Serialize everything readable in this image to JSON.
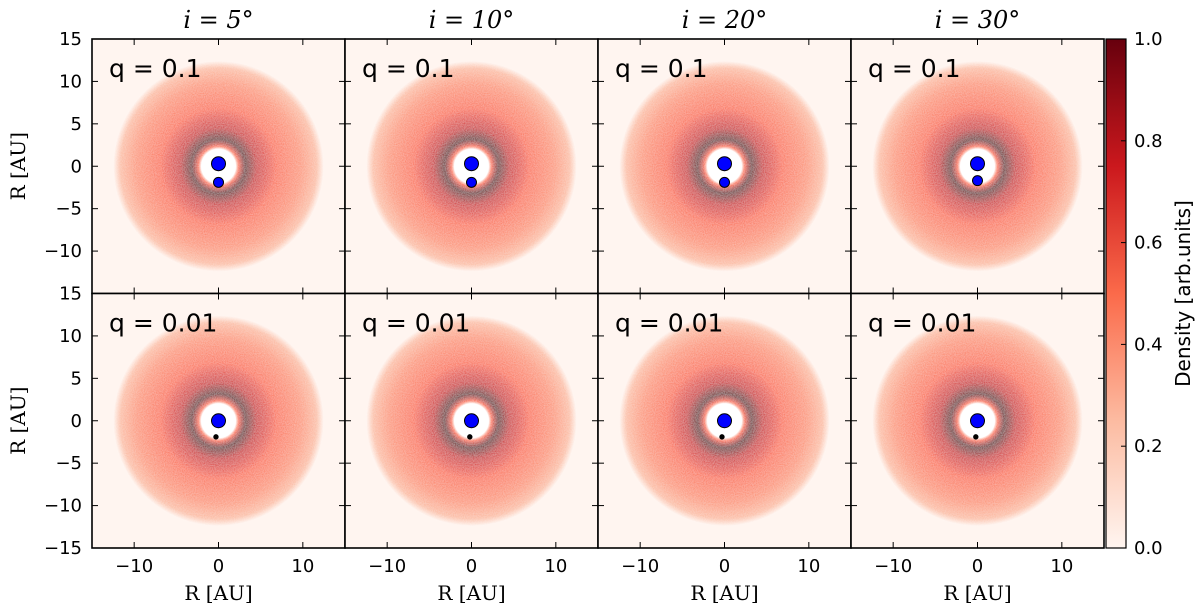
{
  "chart_data": {
    "type": "heatmap",
    "column_titles": [
      "i = 5°",
      "i = 10°",
      "i = 20°",
      "i = 30°"
    ],
    "row_labels": [
      "q = 0.1",
      "q = 0.01"
    ],
    "xlabel": "R [AU]",
    "ylabel": "R [AU]",
    "xlim": [
      -15,
      15
    ],
    "ylim": [
      -15,
      15
    ],
    "x_ticks": [
      -10,
      0,
      10
    ],
    "y_ticks": [
      -15,
      -10,
      -5,
      0,
      5,
      10,
      15
    ],
    "colorbar": {
      "label": "Density [arb.units]",
      "range": [
        0.0,
        1.0
      ],
      "ticks": [
        0.0,
        0.2,
        0.4,
        0.6,
        0.8,
        1.0
      ],
      "colormap": "Reds",
      "colors": [
        "#fff5f0",
        "#fcbba1",
        "#fb6a4a",
        "#cb181d",
        "#67000d"
      ]
    },
    "disk": {
      "outer_radius": 12.5,
      "gap_radius": 2.4,
      "peak_ring_radius": 3.2
    },
    "panels": [
      {
        "column": "i = 5°",
        "q": "q = 0.1",
        "primary": [
          0,
          0.3
        ],
        "companion": [
          0,
          -1.9
        ],
        "companion_size": "medium"
      },
      {
        "column": "i = 10°",
        "q": "q = 0.1",
        "primary": [
          0,
          0.3
        ],
        "companion": [
          0,
          -1.9
        ],
        "companion_size": "medium"
      },
      {
        "column": "i = 20°",
        "q": "q = 0.1",
        "primary": [
          0,
          0.3
        ],
        "companion": [
          0,
          -1.9
        ],
        "companion_size": "medium"
      },
      {
        "column": "i = 30°",
        "q": "q = 0.1",
        "primary": [
          0,
          0.3
        ],
        "companion": [
          0,
          -1.7
        ],
        "companion_size": "medium"
      },
      {
        "column": "i = 5°",
        "q": "q = 0.01",
        "primary": [
          0,
          0.0
        ],
        "companion": [
          -0.3,
          -1.9
        ],
        "companion_size": "small"
      },
      {
        "column": "i = 10°",
        "q": "q = 0.01",
        "primary": [
          0,
          0.0
        ],
        "companion": [
          -0.2,
          -1.9
        ],
        "companion_size": "small"
      },
      {
        "column": "i = 20°",
        "q": "q = 0.01",
        "primary": [
          0,
          0.0
        ],
        "companion": [
          -0.3,
          -1.9
        ],
        "companion_size": "small"
      },
      {
        "column": "i = 30°",
        "q": "q = 0.01",
        "primary": [
          0,
          0.0
        ],
        "companion": [
          -0.2,
          -1.9
        ],
        "companion_size": "small"
      }
    ],
    "marker_color": "#0000ff"
  }
}
